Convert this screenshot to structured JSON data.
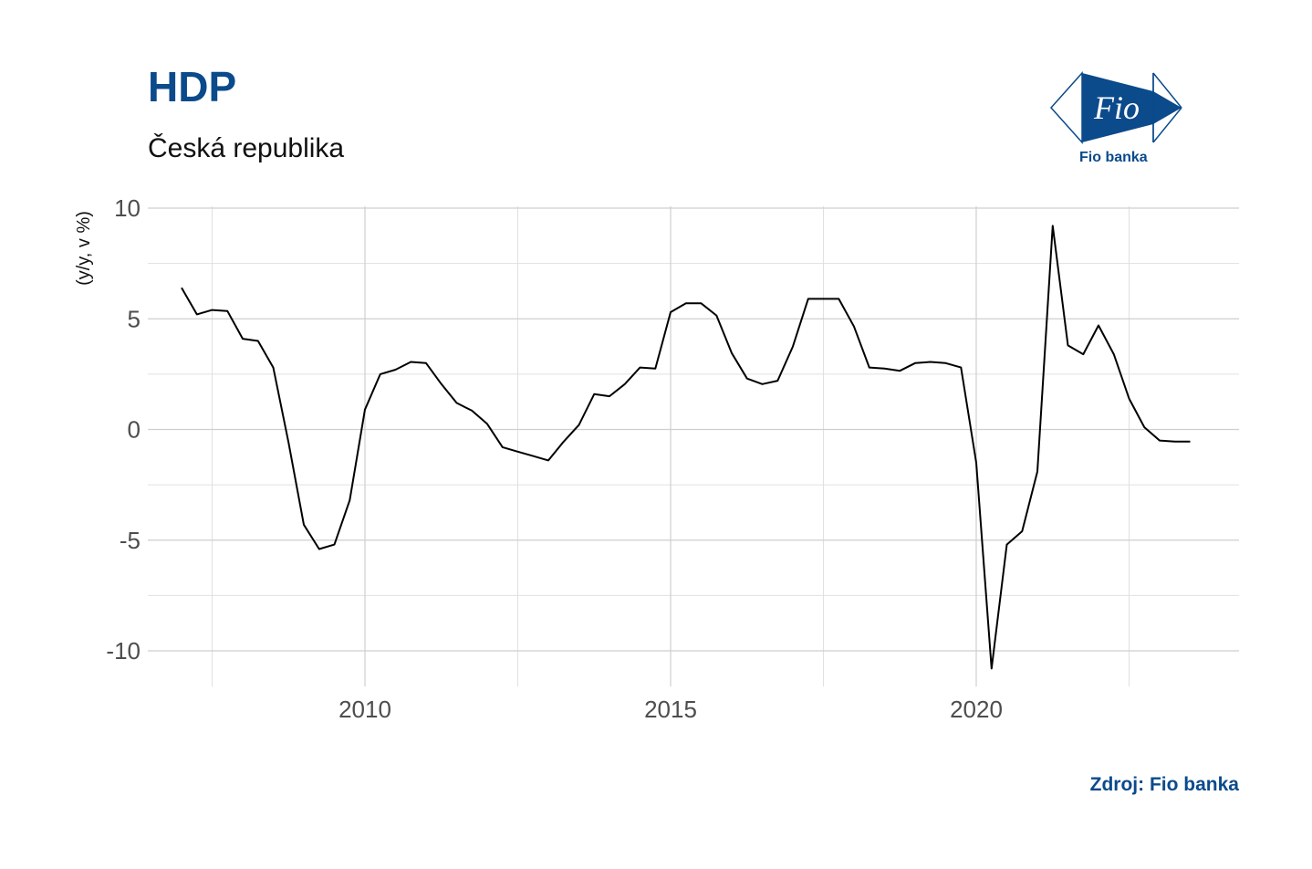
{
  "header": {
    "title": "HDP",
    "subtitle": "Česká republika"
  },
  "logo": {
    "mark_text": "Fio",
    "name": "Fio banka",
    "color": "#0b4a8b"
  },
  "footer": {
    "source": "Zdroj: Fio banka"
  },
  "chart_data": {
    "type": "line",
    "title": "HDP",
    "subtitle": "Česká republika",
    "xlabel": "",
    "ylabel": "(y/y, v %)",
    "ylim": [
      -11.8,
      10
    ],
    "xlim": [
      2006.6,
      2024.3
    ],
    "yticks": [
      10,
      5,
      0,
      -5,
      -10
    ],
    "xticks": [
      2010,
      2015,
      2020
    ],
    "grid": true,
    "line_color": "#000000",
    "series": [
      {
        "x": [
          2007.0,
          2007.25,
          2007.5,
          2007.75,
          2008.0,
          2008.25,
          2008.5,
          2008.75,
          2009.0,
          2009.25,
          2009.5,
          2009.75,
          2010.0,
          2010.25,
          2010.5,
          2010.75,
          2011.0,
          2011.25,
          2011.5,
          2011.75,
          2012.0,
          2012.25,
          2012.5,
          2012.75,
          2013.0,
          2013.25,
          2013.5,
          2013.75,
          2014.0,
          2014.25,
          2014.5,
          2014.75,
          2015.0,
          2015.25,
          2015.5,
          2015.75,
          2016.0,
          2016.25,
          2016.5,
          2016.75,
          2017.0,
          2017.25,
          2017.5,
          2017.75,
          2018.0,
          2018.25,
          2018.5,
          2018.75,
          2019.0,
          2019.25,
          2019.5,
          2019.75,
          2020.0,
          2020.25,
          2020.5,
          2020.75,
          2021.0,
          2021.25,
          2021.5,
          2021.75,
          2022.0,
          2022.25,
          2022.5,
          2022.75,
          2023.0,
          2023.25,
          2023.5
        ],
        "values": [
          6.4,
          5.2,
          5.4,
          5.35,
          4.1,
          4.0,
          2.8,
          -0.6,
          -4.3,
          -5.4,
          -5.2,
          -3.2,
          0.9,
          2.5,
          2.7,
          3.05,
          3.0,
          2.05,
          1.2,
          0.85,
          0.25,
          -0.8,
          -1.0,
          -1.2,
          -1.4,
          -0.55,
          0.2,
          1.6,
          1.5,
          2.05,
          2.8,
          2.75,
          5.3,
          5.7,
          5.7,
          5.15,
          3.45,
          2.3,
          2.05,
          2.2,
          3.75,
          5.9,
          5.9,
          5.9,
          4.65,
          2.8,
          2.75,
          2.65,
          3.0,
          3.05,
          3.0,
          2.8,
          -1.5,
          -10.8,
          -5.2,
          -4.6,
          -1.9,
          9.2,
          3.8,
          3.4,
          4.7,
          3.4,
          1.4,
          0.1,
          -0.5,
          -0.55,
          -0.55
        ]
      }
    ]
  }
}
